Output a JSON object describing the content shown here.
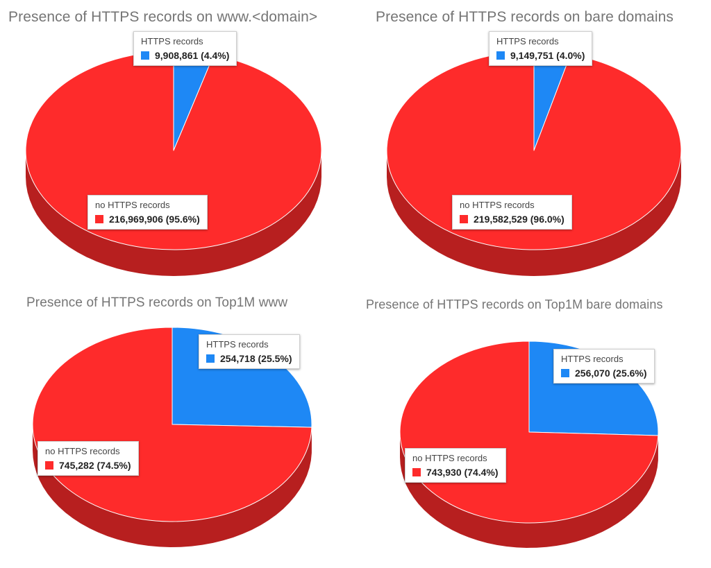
{
  "chart_data": [
    {
      "type": "pie",
      "title": "Presence of HTTPS records on www.<domain>",
      "slices": [
        {
          "label": "HTTPS records",
          "value": 9908861,
          "value_text": "9,908,861 (4.4%)",
          "percent": 4.4,
          "color": "#1e88f5"
        },
        {
          "label": "no HTTPS records",
          "value": 216969906,
          "value_text": "216,969,906 (95.6%)",
          "percent": 95.6,
          "color": "#fe2b2b"
        }
      ]
    },
    {
      "type": "pie",
      "title": "Presence of HTTPS records on bare domains",
      "slices": [
        {
          "label": "HTTPS records",
          "value": 9149751,
          "value_text": "9,149,751 (4.0%)",
          "percent": 4.0,
          "color": "#1e88f5"
        },
        {
          "label": "no HTTPS records",
          "value": 219582529,
          "value_text": "219,582,529 (96.0%)",
          "percent": 96.0,
          "color": "#fe2b2b"
        }
      ]
    },
    {
      "type": "pie",
      "title": "Presence of HTTPS records on Top1M www",
      "slices": [
        {
          "label": "HTTPS records",
          "value": 254718,
          "value_text": "254,718 (25.5%)",
          "percent": 25.5,
          "color": "#1e88f5"
        },
        {
          "label": "no HTTPS records",
          "value": 745282,
          "value_text": "745,282 (74.5%)",
          "percent": 74.5,
          "color": "#fe2b2b"
        }
      ]
    },
    {
      "type": "pie",
      "title": "Presence of HTTPS records on Top1M bare domains",
      "slices": [
        {
          "label": "HTTPS records",
          "value": 256070,
          "value_text": "256,070 (25.6%)",
          "percent": 25.6,
          "color": "#1e88f5"
        },
        {
          "label": "no HTTPS records",
          "value": 743930,
          "value_text": "743,930 (74.4%)",
          "percent": 74.4,
          "color": "#fe2b2b"
        }
      ]
    }
  ]
}
